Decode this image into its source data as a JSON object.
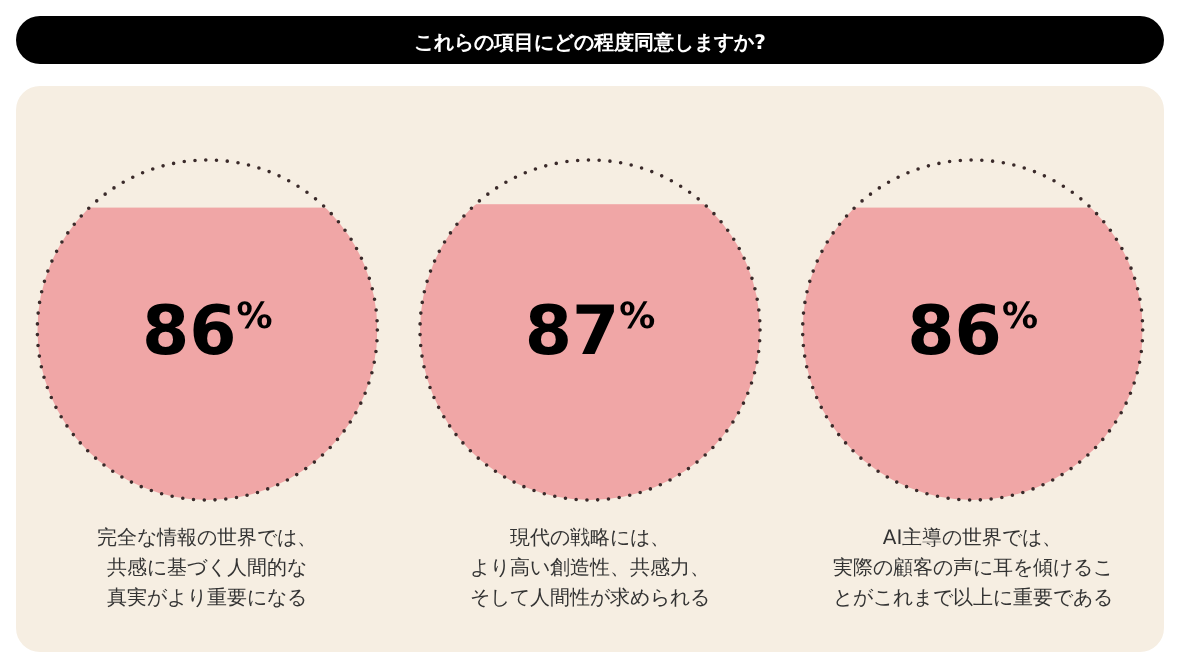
{
  "chart_data": {
    "type": "other",
    "title": "これらの項目にどの程度同意しますか?",
    "categories": [
      "完全な情報の世界では、共感に基づく人間的な真実がより重要になる",
      "現代の戦略には、より高い創造性、共感力、そして人間性が求められる",
      "AI主導の世界では、実際の顧客の声に耳を傾けることがこれまで以上に重要である"
    ],
    "values": [
      86,
      87,
      86
    ],
    "value_labels": [
      "86$^{%}$",
      "87$^{%}$",
      "86$^{%}$"
    ],
    "color": "#f0a6a6"
  }
}
